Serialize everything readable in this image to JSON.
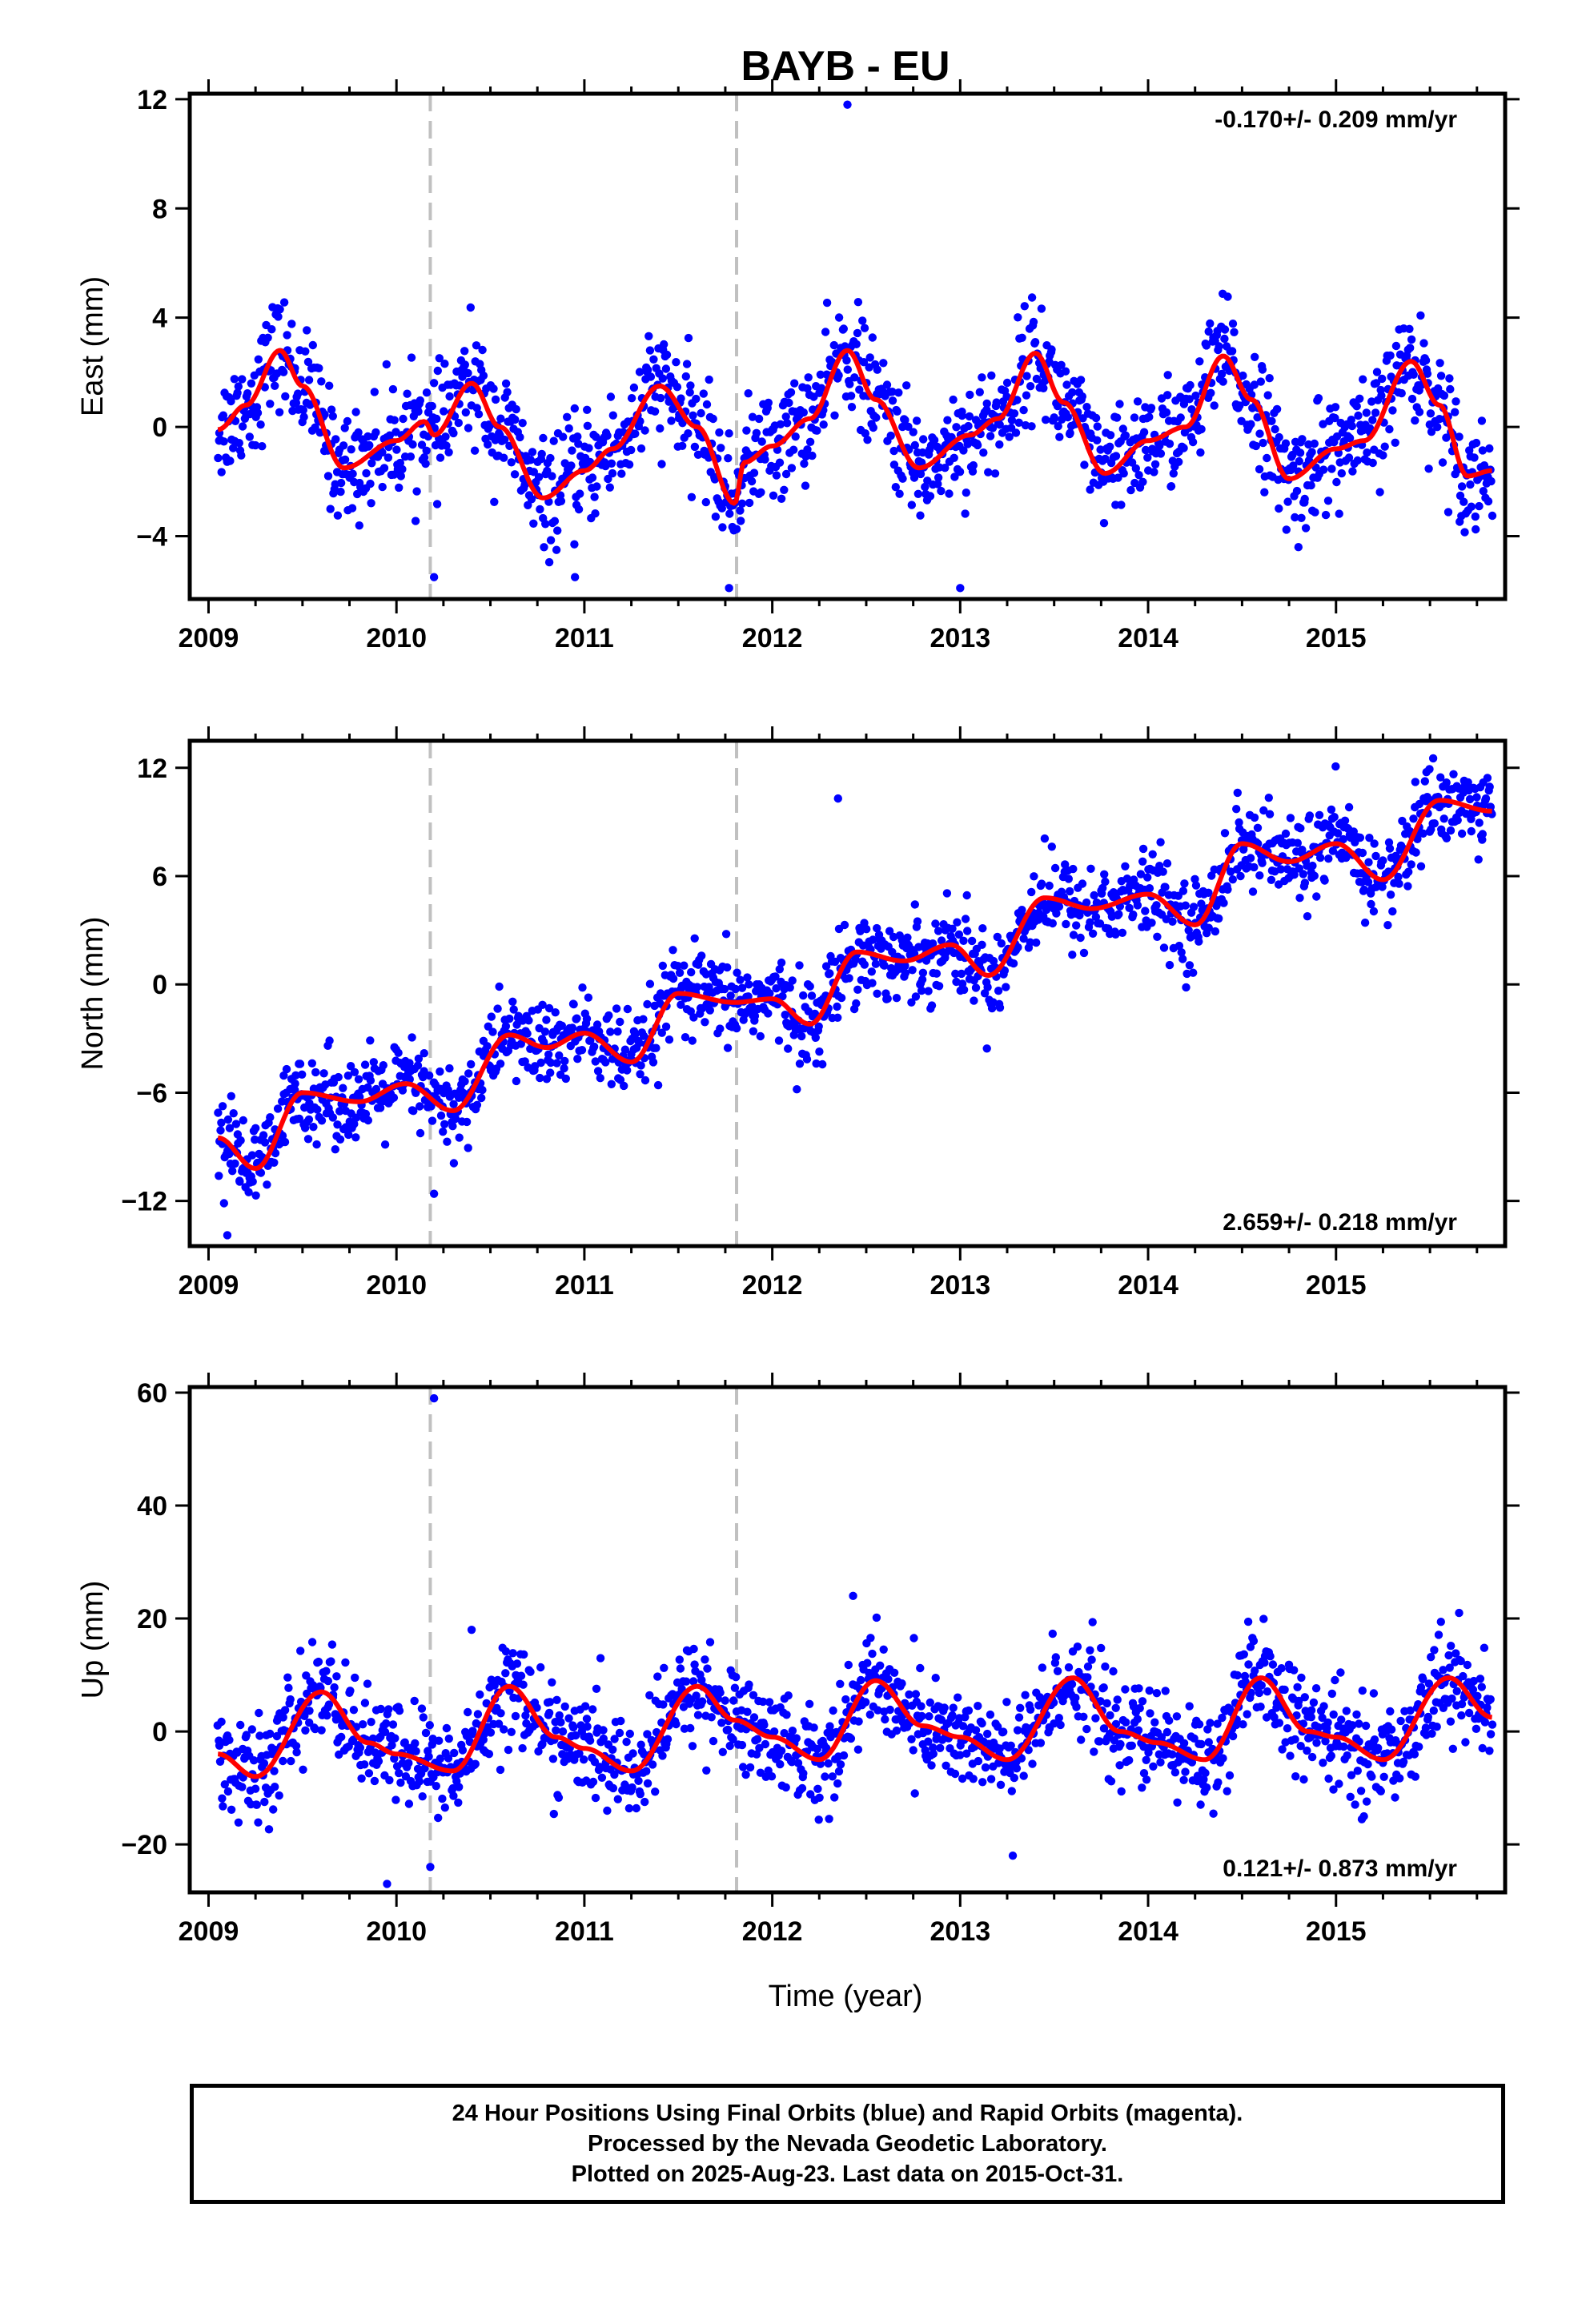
{
  "title": "BAYB - EU",
  "x_axis_label": "Time (year)",
  "caption": [
    "24 Hour Positions Using Final Orbits (blue) and Rapid Orbits (magenta).",
    "Processed by the Nevada Geodetic Laboratory.",
    "Plotted on 2025-Aug-23. Last data on 2015-Oct-31."
  ],
  "colors": {
    "points": "#0000ff",
    "fit": "#ff0000",
    "event_lines": "#c0c0c0",
    "frame": "#000000"
  },
  "chart_data": [
    {
      "type": "scatter",
      "ylabel": "East (mm)",
      "rate_text": "-0.170+/- 0.209 mm/yr",
      "rate_position": "top-right",
      "xlim": [
        2008.9,
        2015.9
      ],
      "ylim": [
        -6.3,
        12.2
      ],
      "xticks": [
        2009,
        2010,
        2011,
        2012,
        2013,
        2014,
        2015
      ],
      "xtick_labels": [
        "2009",
        "2010",
        "2011",
        "2012",
        "2013",
        "2014",
        "2015"
      ],
      "yticks": [
        -4,
        0,
        4,
        8,
        12
      ],
      "ytick_labels": [
        "−4",
        "0",
        "4",
        "8",
        "12"
      ],
      "event_lines_x": [
        2010.18,
        2011.81
      ],
      "series": [
        {
          "kind": "points",
          "x_start": 2009.05,
          "x_end": 2015.83,
          "trend": 0.0,
          "scatter_sd": 1.0
        },
        {
          "kind": "fit_curve",
          "x": [
            2009.05,
            2009.2,
            2009.38,
            2009.5,
            2009.72,
            2010.0,
            2010.15,
            2010.2,
            2010.4,
            2010.55,
            2010.78,
            2011.0,
            2011.15,
            2011.4,
            2011.6,
            2011.8,
            2011.85,
            2012.0,
            2012.2,
            2012.4,
            2012.55,
            2012.78,
            2013.05,
            2013.2,
            2013.4,
            2013.55,
            2013.77,
            2014.0,
            2014.2,
            2014.4,
            2014.55,
            2014.75,
            2015.0,
            2015.15,
            2015.4,
            2015.55,
            2015.7,
            2015.83
          ],
          "y": [
            -0.1,
            0.8,
            2.8,
            1.5,
            -1.5,
            -0.5,
            0.2,
            -0.3,
            1.6,
            0.0,
            -2.6,
            -1.6,
            -0.8,
            1.5,
            0.0,
            -2.8,
            -1.3,
            -0.7,
            0.3,
            2.8,
            1.0,
            -1.5,
            -0.3,
            0.3,
            2.7,
            0.9,
            -1.7,
            -0.5,
            0.0,
            2.6,
            1.0,
            -1.9,
            -0.8,
            -0.5,
            2.4,
            0.8,
            -1.8,
            -1.6
          ]
        }
      ],
      "outliers": [
        {
          "x": 2012.4,
          "y": 11.8
        },
        {
          "x": 2010.2,
          "y": -5.5
        },
        {
          "x": 2011.77,
          "y": -5.9
        },
        {
          "x": 2013.0,
          "y": -5.9
        },
        {
          "x": 2010.95,
          "y": -5.5
        },
        {
          "x": 2014.8,
          "y": -4.4
        }
      ]
    },
    {
      "type": "scatter",
      "ylabel": "North (mm)",
      "rate_text": "2.659+/- 0.218 mm/yr",
      "rate_position": "bottom-right",
      "xlim": [
        2008.9,
        2015.9
      ],
      "ylim": [
        -14.5,
        13.5
      ],
      "xticks": [
        2009,
        2010,
        2011,
        2012,
        2013,
        2014,
        2015
      ],
      "xtick_labels": [
        "2009",
        "2010",
        "2011",
        "2012",
        "2013",
        "2014",
        "2015"
      ],
      "yticks": [
        -12,
        -6,
        0,
        6,
        12
      ],
      "ytick_labels": [
        "−12",
        "−6",
        "0",
        "6",
        "12"
      ],
      "event_lines_x": [
        2010.18,
        2011.81
      ],
      "series": [
        {
          "kind": "points",
          "x_start": 2009.05,
          "x_end": 2015.83,
          "trend": 0.0,
          "scatter_sd": 1.2
        },
        {
          "kind": "fit_curve",
          "x": [
            2009.05,
            2009.25,
            2009.5,
            2009.8,
            2010.05,
            2010.3,
            2010.6,
            2010.8,
            2011.0,
            2011.25,
            2011.5,
            2011.8,
            2012.0,
            2012.2,
            2012.45,
            2012.7,
            2012.95,
            2013.15,
            2013.45,
            2013.7,
            2014.0,
            2014.25,
            2014.5,
            2014.75,
            2015.0,
            2015.25,
            2015.55,
            2015.83
          ],
          "y": [
            -8.5,
            -10.2,
            -6.0,
            -6.5,
            -5.5,
            -7.0,
            -2.8,
            -3.5,
            -2.7,
            -4.3,
            -0.5,
            -1.0,
            -0.8,
            -2.2,
            1.8,
            1.3,
            2.2,
            0.5,
            4.8,
            4.2,
            5.0,
            3.3,
            7.8,
            6.8,
            7.8,
            5.8,
            10.2,
            9.6
          ]
        }
      ],
      "outliers": [
        {
          "x": 2012.35,
          "y": 10.3
        },
        {
          "x": 2009.1,
          "y": -13.9
        },
        {
          "x": 2010.2,
          "y": -11.6
        }
      ]
    },
    {
      "type": "scatter",
      "ylabel": "Up (mm)",
      "rate_text": "0.121+/- 0.873 mm/yr",
      "rate_position": "bottom-right",
      "xlim": [
        2008.9,
        2015.9
      ],
      "ylim": [
        -28.5,
        61
      ],
      "xticks": [
        2009,
        2010,
        2011,
        2012,
        2013,
        2014,
        2015
      ],
      "xtick_labels": [
        "2009",
        "2010",
        "2011",
        "2012",
        "2013",
        "2014",
        "2015"
      ],
      "yticks": [
        -20,
        0,
        20,
        40,
        60
      ],
      "ytick_labels": [
        "−20",
        "0",
        "20",
        "40",
        "60"
      ],
      "event_lines_x": [
        2010.18,
        2011.81
      ],
      "series": [
        {
          "kind": "points",
          "x_start": 2009.05,
          "x_end": 2015.83,
          "trend": 0.0,
          "scatter_sd": 4.5
        },
        {
          "kind": "fit_curve",
          "x": [
            2009.05,
            2009.25,
            2009.6,
            2009.85,
            2010.0,
            2010.3,
            2010.6,
            2010.85,
            2011.0,
            2011.25,
            2011.6,
            2011.8,
            2012.0,
            2012.25,
            2012.55,
            2012.8,
            2013.0,
            2013.25,
            2013.6,
            2013.85,
            2014.05,
            2014.3,
            2014.6,
            2014.85,
            2015.0,
            2015.25,
            2015.6,
            2015.83
          ],
          "y": [
            -4,
            -8,
            7,
            -2,
            -4,
            -7,
            8,
            -1,
            -3,
            -7,
            8,
            2,
            -1,
            -5,
            9,
            1,
            -1,
            -5,
            9.5,
            0,
            -2,
            -5,
            9.5,
            0,
            -1,
            -5,
            9.5,
            2.5
          ]
        }
      ],
      "outliers": [
        {
          "x": 2010.2,
          "y": 59
        },
        {
          "x": 2009.95,
          "y": -27
        },
        {
          "x": 2012.43,
          "y": 24
        },
        {
          "x": 2013.28,
          "y": -22
        },
        {
          "x": 2010.18,
          "y": -24
        },
        {
          "x": 2010.4,
          "y": 18
        }
      ]
    }
  ]
}
